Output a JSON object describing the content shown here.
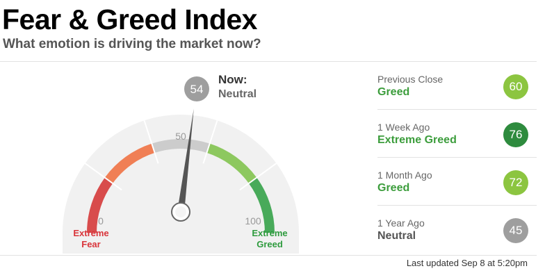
{
  "header": {
    "title": "Fear & Greed Index",
    "subtitle": "What emotion is driving the market now?"
  },
  "gauge": {
    "value": 54,
    "value_text": "54",
    "min": 0,
    "max": 100,
    "now_label": "Now:",
    "now_status": "Neutral",
    "tick_min": "0",
    "tick_mid": "50",
    "tick_max": "100",
    "fear_label_line1": "Extreme",
    "fear_label_line2": "Fear",
    "greed_label_line1": "Extreme",
    "greed_label_line2": "Greed",
    "colors": {
      "extreme_fear": "#d32f2f",
      "fear": "#f06b3a",
      "neutral": "#c8c8c8",
      "greed": "#7bc145",
      "extreme_greed": "#2a9d3f",
      "needle": "#555555",
      "value_badge": "#9e9e9e"
    }
  },
  "history": [
    {
      "label": "Previous Close",
      "status": "Greed",
      "value": "60",
      "status_color": "#3c9d3c",
      "badge_color": "#8cc540"
    },
    {
      "label": "1 Week Ago",
      "status": "Extreme Greed",
      "value": "76",
      "status_color": "#3c9d3c",
      "badge_color": "#2e8b3e"
    },
    {
      "label": "1 Month Ago",
      "status": "Greed",
      "value": "72",
      "status_color": "#3c9d3c",
      "badge_color": "#8cc540"
    },
    {
      "label": "1 Year Ago",
      "status": "Neutral",
      "value": "45",
      "status_color": "#555555",
      "badge_color": "#9e9e9e"
    }
  ],
  "footer": {
    "last_updated": "Last updated Sep 8 at 5:20pm"
  }
}
